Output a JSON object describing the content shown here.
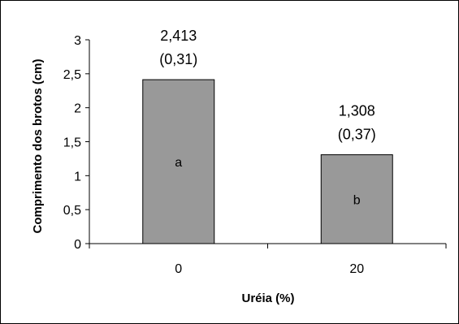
{
  "chart_data": {
    "type": "bar",
    "title": "",
    "xlabel": "Uréia (%)",
    "ylabel": "Comprimento dos brotos (cm)",
    "categories": [
      "0",
      "20"
    ],
    "values": [
      2.413,
      1.308
    ],
    "value_labels": [
      "2,413",
      "1,308"
    ],
    "sd_labels": [
      "(0,31)",
      "(0,37)"
    ],
    "group_letters": [
      "a",
      "b"
    ],
    "ylim": [
      0,
      3
    ],
    "yticks": [
      0,
      0.5,
      1,
      1.5,
      2,
      2.5,
      3
    ],
    "ytick_labels": [
      "0",
      "0,5",
      "1",
      "1,5",
      "2",
      "2,5",
      "3"
    ],
    "grid": false,
    "legend": "none",
    "bar_color": "#999999"
  }
}
